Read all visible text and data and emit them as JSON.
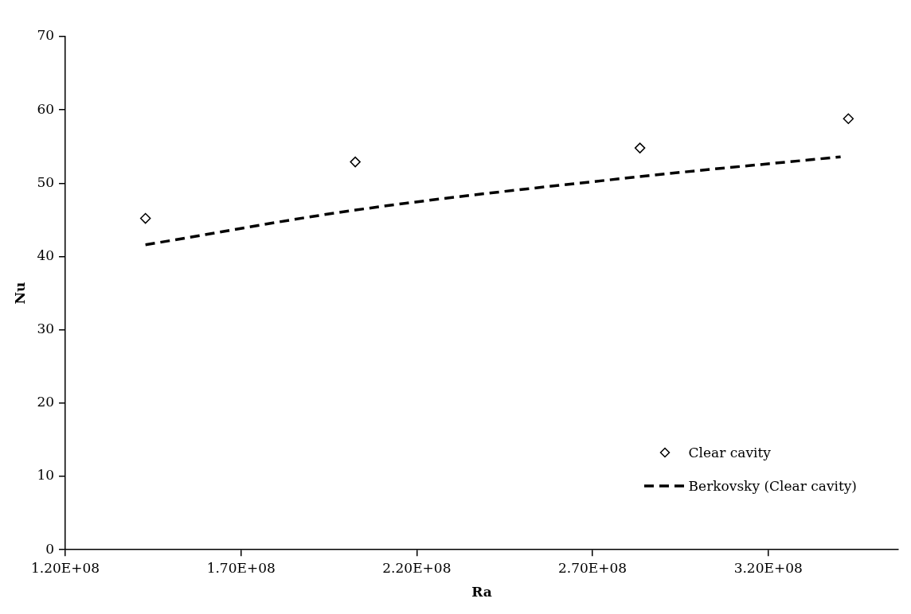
{
  "chart_data": {
    "type": "scatter",
    "xlabel": "Ra",
    "ylabel": "Nu",
    "xlim": [
      120000000,
      357000000
    ],
    "xticks": [
      {
        "value": 120000000,
        "label": "1.20E+08"
      },
      {
        "value": 170000000,
        "label": "1.70E+08"
      },
      {
        "value": 220000000,
        "label": "2.20E+08"
      },
      {
        "value": 270000000,
        "label": "2.70E+08"
      },
      {
        "value": 320000000,
        "label": "3.20E+08"
      }
    ],
    "ylim": [
      0,
      70
    ],
    "yticks": [
      0,
      10,
      20,
      30,
      40,
      50,
      60,
      70
    ],
    "grid": false,
    "legend": "bottom right",
    "series": [
      {
        "name": "Clear cavity",
        "color": "#000000",
        "marker": "diamond",
        "x": [
          142800000,
          202500000,
          283500000,
          342800000
        ],
        "values": [
          45.2,
          52.9,
          54.8,
          58.8
        ]
      },
      {
        "name": "Berkovsky (Clear cavity)",
        "type": "line",
        "color": "#000000",
        "marker": "none",
        "line_style": "dashed",
        "x": [
          142800000,
          202000000,
          283500000,
          340600000
        ],
        "values": [
          41.6,
          46.3,
          50.9,
          53.6
        ]
      }
    ]
  }
}
